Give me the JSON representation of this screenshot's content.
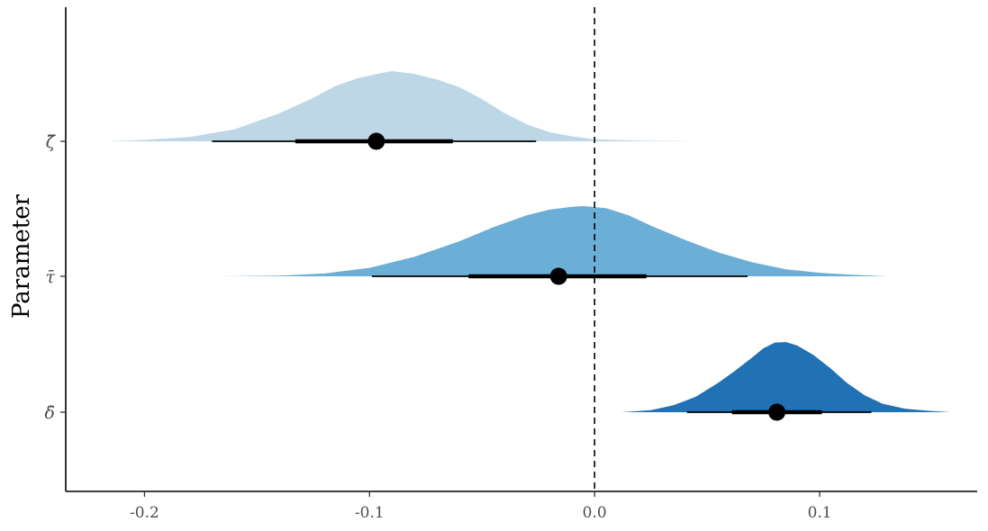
{
  "chart_data": {
    "type": "density-interval",
    "title": "",
    "xlabel": "",
    "ylabel": "Parameter",
    "xlim": [
      -0.235,
      0.17
    ],
    "x_ticks": [
      -0.2,
      -0.1,
      0.0,
      0.1
    ],
    "x_tick_labels": [
      "-0.2",
      "-0.1",
      "0.0",
      "0.1"
    ],
    "reference_line": {
      "x": 0.0,
      "style": "dashed"
    },
    "grid": false,
    "legend": "none",
    "categories": [
      "ζ̄",
      "τ̄",
      "δ̄"
    ],
    "series": [
      {
        "label": "ζ̄",
        "color": "#bdd7e7",
        "point": -0.097,
        "inner_interval": [
          -0.133,
          -0.063
        ],
        "outer_interval": [
          -0.17,
          -0.026
        ],
        "density": [
          [
            -0.217,
            0.0
          ],
          [
            -0.2,
            0.02
          ],
          [
            -0.18,
            0.06
          ],
          [
            -0.16,
            0.17
          ],
          [
            -0.14,
            0.4
          ],
          [
            -0.125,
            0.62
          ],
          [
            -0.115,
            0.79
          ],
          [
            -0.105,
            0.9
          ],
          [
            -0.095,
            0.97
          ],
          [
            -0.09,
            1.0
          ],
          [
            -0.08,
            0.96
          ],
          [
            -0.07,
            0.88
          ],
          [
            -0.06,
            0.77
          ],
          [
            -0.05,
            0.6
          ],
          [
            -0.04,
            0.4
          ],
          [
            -0.03,
            0.24
          ],
          [
            -0.02,
            0.13
          ],
          [
            -0.01,
            0.07
          ],
          [
            0.0,
            0.03
          ],
          [
            0.02,
            0.01
          ],
          [
            0.043,
            0.0
          ]
        ]
      },
      {
        "label": "τ̄",
        "color": "#6baed6",
        "point": -0.016,
        "inner_interval": [
          -0.056,
          0.023
        ],
        "outer_interval": [
          -0.099,
          0.068
        ],
        "density": [
          [
            -0.166,
            0.0
          ],
          [
            -0.14,
            0.01
          ],
          [
            -0.12,
            0.04
          ],
          [
            -0.1,
            0.12
          ],
          [
            -0.08,
            0.28
          ],
          [
            -0.06,
            0.5
          ],
          [
            -0.045,
            0.7
          ],
          [
            -0.03,
            0.87
          ],
          [
            -0.02,
            0.95
          ],
          [
            -0.01,
            0.99
          ],
          [
            -0.005,
            1.0
          ],
          [
            0.005,
            0.97
          ],
          [
            0.015,
            0.87
          ],
          [
            0.025,
            0.72
          ],
          [
            0.04,
            0.52
          ],
          [
            0.055,
            0.34
          ],
          [
            0.07,
            0.2
          ],
          [
            0.085,
            0.1
          ],
          [
            0.1,
            0.05
          ],
          [
            0.115,
            0.02
          ],
          [
            0.13,
            0.0
          ]
        ]
      },
      {
        "label": "δ̄",
        "color": "#2171b5",
        "point": 0.081,
        "inner_interval": [
          0.061,
          0.101
        ],
        "outer_interval": [
          0.041,
          0.123
        ],
        "density": [
          [
            0.012,
            0.0
          ],
          [
            0.025,
            0.03
          ],
          [
            0.035,
            0.1
          ],
          [
            0.045,
            0.22
          ],
          [
            0.055,
            0.42
          ],
          [
            0.062,
            0.58
          ],
          [
            0.07,
            0.78
          ],
          [
            0.075,
            0.91
          ],
          [
            0.08,
            0.99
          ],
          [
            0.085,
            1.0
          ],
          [
            0.09,
            0.95
          ],
          [
            0.097,
            0.82
          ],
          [
            0.105,
            0.62
          ],
          [
            0.112,
            0.42
          ],
          [
            0.12,
            0.24
          ],
          [
            0.128,
            0.12
          ],
          [
            0.138,
            0.05
          ],
          [
            0.148,
            0.02
          ],
          [
            0.158,
            0.0
          ]
        ]
      }
    ]
  }
}
